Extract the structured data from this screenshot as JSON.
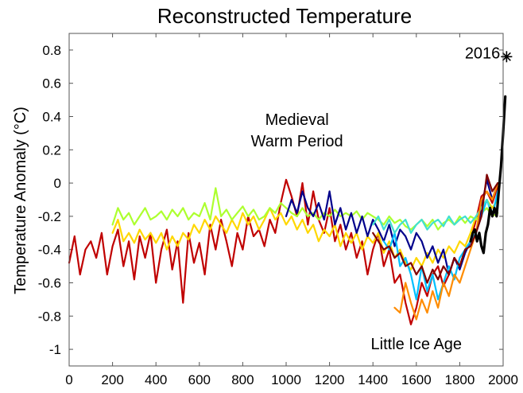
{
  "chart_data": {
    "type": "line",
    "title": "Reconstructed Temperature",
    "xlabel": "",
    "ylabel": "Temperature Anomaly (°C)",
    "xlim": [
      0,
      2000
    ],
    "ylim": [
      -1.1,
      0.9
    ],
    "x_ticks": [
      0,
      200,
      400,
      600,
      800,
      1000,
      1200,
      1400,
      1600,
      1800,
      2000
    ],
    "x_tick_labels": [
      "0",
      "200",
      "400",
      "600",
      "800",
      "1000",
      "1200",
      "1400",
      "1600",
      "1800",
      "2000"
    ],
    "y_ticks": [
      0.8,
      0.6,
      0.4,
      0.2,
      0,
      -0.2,
      -0.4,
      -0.6,
      -0.8,
      -1
    ],
    "y_tick_labels": [
      "0.8",
      "0.6",
      "0.4",
      "0.2",
      "0",
      "-0.2",
      "-0.4",
      "-0.6",
      "-0.8",
      "-1"
    ],
    "grid": false,
    "legend": "none",
    "annotations": [
      {
        "text": "Medieval",
        "x": 1050,
        "y": 0.35
      },
      {
        "text": "Warm Period",
        "x": 1050,
        "y": 0.22
      },
      {
        "text": "Little Ice Age",
        "x": 1600,
        "y": -1.0
      },
      {
        "text": "2016",
        "x": 1905,
        "y": 0.75
      }
    ],
    "marker": {
      "x": 2016,
      "y": 0.76,
      "color": "#000000"
    },
    "series": [
      {
        "color": "#c00000",
        "width": 2.2,
        "x": [
          0,
          25,
          50,
          75,
          100,
          125,
          150,
          175,
          200,
          225,
          250,
          275,
          300,
          325,
          350,
          375,
          400,
          425,
          450,
          475,
          500,
          525,
          550,
          575,
          600,
          625,
          650,
          675,
          700,
          725,
          750,
          775,
          800,
          825,
          850,
          875,
          900,
          925,
          950,
          975,
          1000,
          1025,
          1050,
          1075,
          1100,
          1125,
          1150,
          1175,
          1200,
          1225,
          1250,
          1275,
          1300,
          1325,
          1350,
          1375,
          1400,
          1425,
          1450,
          1475,
          1500,
          1525,
          1550,
          1575,
          1600,
          1625,
          1650,
          1675,
          1700,
          1725,
          1750,
          1775,
          1800,
          1825,
          1850,
          1875,
          1900,
          1925,
          1950,
          1975
        ],
        "y": [
          -0.48,
          -0.32,
          -0.55,
          -0.4,
          -0.35,
          -0.45,
          -0.3,
          -0.55,
          -0.38,
          -0.28,
          -0.5,
          -0.35,
          -0.58,
          -0.32,
          -0.45,
          -0.3,
          -0.6,
          -0.4,
          -0.28,
          -0.52,
          -0.35,
          -0.72,
          -0.3,
          -0.48,
          -0.36,
          -0.55,
          -0.25,
          -0.4,
          -0.22,
          -0.35,
          -0.5,
          -0.3,
          -0.4,
          -0.2,
          -0.32,
          -0.28,
          -0.38,
          -0.22,
          -0.3,
          -0.12,
          0.02,
          -0.08,
          -0.2,
          0.0,
          -0.25,
          -0.05,
          -0.22,
          -0.3,
          -0.15,
          -0.35,
          -0.25,
          -0.4,
          -0.3,
          -0.45,
          -0.35,
          -0.55,
          -0.4,
          -0.3,
          -0.5,
          -0.4,
          -0.6,
          -0.55,
          -0.72,
          -0.85,
          -0.75,
          -0.6,
          -0.68,
          -0.55,
          -0.5,
          -0.62,
          -0.55,
          -0.45,
          -0.5,
          -0.4,
          -0.35,
          -0.22,
          -0.08,
          -0.05,
          -0.12,
          -0.02
        ]
      },
      {
        "color": "#ffd700",
        "width": 2.2,
        "x": [
          200,
          225,
          250,
          275,
          300,
          325,
          350,
          375,
          400,
          425,
          450,
          475,
          500,
          525,
          550,
          575,
          600,
          625,
          650,
          675,
          700,
          725,
          750,
          775,
          800,
          825,
          850,
          875,
          900,
          925,
          950,
          975,
          1000,
          1025,
          1050,
          1075,
          1100,
          1125,
          1150,
          1175,
          1200,
          1225,
          1250,
          1275,
          1300,
          1325,
          1350,
          1375,
          1400,
          1425,
          1450,
          1475,
          1500,
          1525,
          1550,
          1575,
          1600,
          1625,
          1650,
          1675,
          1700,
          1725,
          1750,
          1775,
          1800,
          1825,
          1850,
          1875,
          1900,
          1925,
          1950,
          1975
        ],
        "y": [
          -0.3,
          -0.22,
          -0.35,
          -0.3,
          -0.36,
          -0.28,
          -0.34,
          -0.3,
          -0.36,
          -0.3,
          -0.4,
          -0.32,
          -0.38,
          -0.3,
          -0.34,
          -0.25,
          -0.3,
          -0.22,
          -0.28,
          -0.2,
          -0.25,
          -0.3,
          -0.22,
          -0.28,
          -0.18,
          -0.25,
          -0.2,
          -0.28,
          -0.22,
          -0.15,
          -0.22,
          -0.18,
          -0.25,
          -0.2,
          -0.28,
          -0.22,
          -0.3,
          -0.25,
          -0.35,
          -0.28,
          -0.32,
          -0.25,
          -0.38,
          -0.3,
          -0.36,
          -0.3,
          -0.4,
          -0.32,
          -0.36,
          -0.3,
          -0.42,
          -0.35,
          -0.45,
          -0.4,
          -0.48,
          -0.52,
          -0.45,
          -0.5,
          -0.42,
          -0.48,
          -0.4,
          -0.45,
          -0.38,
          -0.42,
          -0.35,
          -0.38,
          -0.3,
          -0.2,
          -0.15,
          -0.1,
          -0.15,
          -0.1
        ]
      },
      {
        "color": "#adff2f",
        "width": 2.2,
        "x": [
          200,
          225,
          250,
          275,
          300,
          325,
          350,
          375,
          400,
          425,
          450,
          475,
          500,
          525,
          550,
          575,
          600,
          625,
          650,
          675,
          700,
          725,
          750,
          775,
          800,
          825,
          850,
          875,
          900,
          925,
          950,
          975,
          1000,
          1025,
          1050,
          1075,
          1100,
          1125,
          1150,
          1175,
          1200,
          1225,
          1250,
          1275,
          1300,
          1325,
          1350,
          1375,
          1400,
          1425,
          1450,
          1475,
          1500,
          1525,
          1550,
          1575,
          1600,
          1625,
          1650,
          1675,
          1700,
          1725,
          1750,
          1775,
          1800,
          1825,
          1850,
          1875,
          1900,
          1925,
          1950,
          1975
        ],
        "y": [
          -0.25,
          -0.15,
          -0.22,
          -0.18,
          -0.25,
          -0.2,
          -0.15,
          -0.22,
          -0.2,
          -0.17,
          -0.22,
          -0.16,
          -0.2,
          -0.15,
          -0.22,
          -0.18,
          -0.2,
          -0.12,
          -0.22,
          -0.03,
          -0.2,
          -0.16,
          -0.22,
          -0.18,
          -0.14,
          -0.2,
          -0.16,
          -0.22,
          -0.2,
          -0.15,
          -0.18,
          -0.12,
          -0.15,
          -0.18,
          -0.2,
          -0.15,
          -0.2,
          -0.18,
          -0.22,
          -0.18,
          -0.2,
          -0.16,
          -0.2,
          -0.18,
          -0.2,
          -0.17,
          -0.22,
          -0.18,
          -0.2,
          -0.22,
          -0.25,
          -0.2,
          -0.24,
          -0.22,
          -0.26,
          -0.28,
          -0.25,
          -0.22,
          -0.26,
          -0.22,
          -0.28,
          -0.24,
          -0.22,
          -0.25,
          -0.2,
          -0.24,
          -0.2,
          -0.22,
          -0.18,
          -0.15,
          -0.2,
          -0.18
        ]
      },
      {
        "color": "#00008b",
        "width": 2.2,
        "x": [
          1000,
          1025,
          1050,
          1075,
          1100,
          1125,
          1150,
          1175,
          1200,
          1225,
          1250,
          1275,
          1300,
          1325,
          1350,
          1375,
          1400,
          1425,
          1450,
          1475,
          1500,
          1525,
          1550,
          1575,
          1600,
          1625,
          1650,
          1675,
          1700,
          1725,
          1750,
          1775,
          1800,
          1825,
          1850,
          1875,
          1900,
          1925,
          1950,
          1975
        ],
        "y": [
          -0.2,
          -0.1,
          -0.18,
          -0.05,
          -0.15,
          -0.2,
          -0.12,
          -0.22,
          -0.05,
          -0.25,
          -0.15,
          -0.28,
          -0.18,
          -0.3,
          -0.2,
          -0.32,
          -0.22,
          -0.28,
          -0.35,
          -0.25,
          -0.38,
          -0.28,
          -0.32,
          -0.4,
          -0.3,
          -0.35,
          -0.45,
          -0.38,
          -0.48,
          -0.4,
          -0.55,
          -0.45,
          -0.52,
          -0.42,
          -0.35,
          -0.3,
          -0.15,
          0.02,
          -0.1,
          0.0
        ]
      },
      {
        "color": "#00bfff",
        "width": 2.2,
        "x": [
          1450,
          1475,
          1500,
          1525,
          1550,
          1575,
          1600,
          1625,
          1650,
          1675,
          1700,
          1725,
          1750,
          1775,
          1800,
          1825,
          1850,
          1875,
          1900,
          1925,
          1950,
          1975
        ],
        "y": [
          -0.35,
          -0.4,
          -0.3,
          -0.5,
          -0.45,
          -0.55,
          -0.7,
          -0.5,
          -0.65,
          -0.55,
          -0.7,
          -0.6,
          -0.5,
          -0.58,
          -0.45,
          -0.4,
          -0.35,
          -0.3,
          -0.2,
          -0.1,
          -0.2,
          -0.05
        ]
      },
      {
        "color": "#40e0d0",
        "width": 2.2,
        "x": [
          1400,
          1425,
          1450,
          1475,
          1500,
          1525,
          1550,
          1575,
          1600,
          1625,
          1650,
          1675,
          1700,
          1725,
          1750,
          1775,
          1800,
          1825,
          1850,
          1875,
          1900,
          1925,
          1950,
          1975
        ],
        "y": [
          -0.25,
          -0.2,
          -0.28,
          -0.22,
          -0.3,
          -0.25,
          -0.22,
          -0.3,
          -0.25,
          -0.22,
          -0.28,
          -0.24,
          -0.22,
          -0.26,
          -0.2,
          -0.25,
          -0.22,
          -0.2,
          -0.24,
          -0.2,
          -0.15,
          -0.1,
          -0.18,
          -0.15
        ]
      },
      {
        "color": "#ff8c00",
        "width": 2.2,
        "x": [
          1500,
          1525,
          1550,
          1575,
          1600,
          1625,
          1650,
          1675,
          1700,
          1725,
          1750,
          1775,
          1800,
          1825,
          1850,
          1875,
          1900,
          1925,
          1950,
          1975
        ],
        "y": [
          -0.75,
          -0.78,
          -0.6,
          -0.72,
          -0.82,
          -0.7,
          -0.78,
          -0.65,
          -0.75,
          -0.6,
          -0.68,
          -0.55,
          -0.6,
          -0.5,
          -0.4,
          -0.3,
          -0.1,
          -0.05,
          -0.1,
          0.0
        ]
      },
      {
        "color": "#800000",
        "width": 2.2,
        "x": [
          1400,
          1425,
          1450,
          1475,
          1500,
          1525,
          1550,
          1575,
          1600,
          1625,
          1650,
          1675,
          1700,
          1725,
          1750,
          1775,
          1800,
          1825,
          1850,
          1875,
          1900,
          1925,
          1950,
          1975
        ],
        "y": [
          -0.3,
          -0.35,
          -0.4,
          -0.38,
          -0.45,
          -0.42,
          -0.5,
          -0.48,
          -0.55,
          -0.5,
          -0.6,
          -0.52,
          -0.58,
          -0.5,
          -0.55,
          -0.45,
          -0.5,
          -0.4,
          -0.38,
          -0.3,
          -0.2,
          0.05,
          -0.05,
          0.0
        ]
      },
      {
        "color": "#000000",
        "width": 3.2,
        "x": [
          1850,
          1860,
          1870,
          1880,
          1890,
          1900,
          1910,
          1920,
          1930,
          1940,
          1950,
          1960,
          1970,
          1980,
          1990,
          2000,
          2010
        ],
        "y": [
          -0.35,
          -0.3,
          -0.28,
          -0.35,
          -0.3,
          -0.38,
          -0.42,
          -0.3,
          -0.25,
          -0.15,
          -0.2,
          -0.15,
          -0.2,
          -0.05,
          0.1,
          0.3,
          0.52
        ]
      }
    ]
  }
}
